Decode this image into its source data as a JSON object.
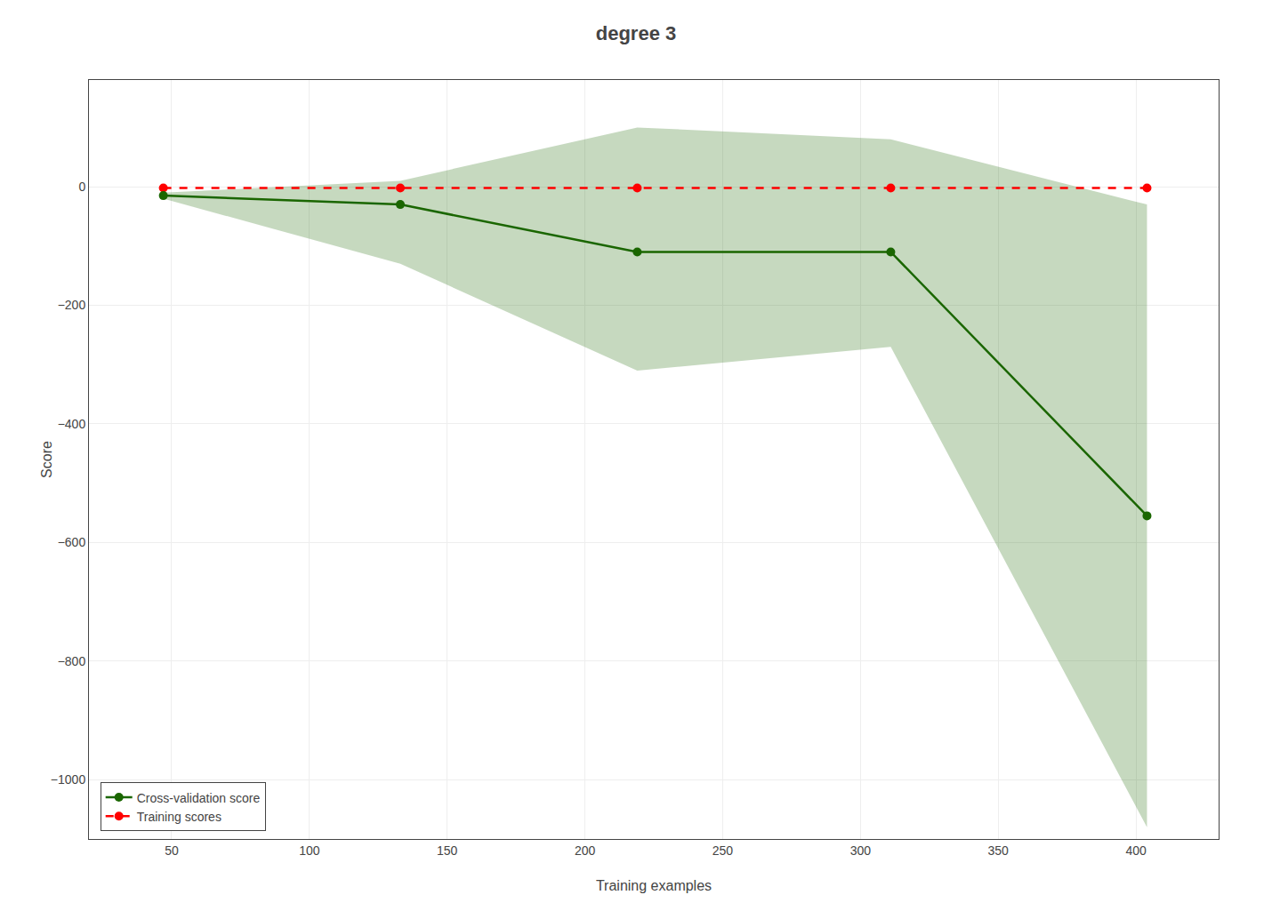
{
  "chart_data": {
    "type": "line",
    "title": "degree 3",
    "x_label": "Training examples",
    "y_label": "Score",
    "x": [
      47,
      133,
      219,
      311,
      404
    ],
    "series": [
      {
        "name": "Training scores",
        "color": "#FF0000",
        "line_style": "dashed",
        "marker": "circle",
        "values": [
          -2,
          -2,
          -2,
          -2,
          -2
        ]
      },
      {
        "name": "Cross-validation score",
        "color": "#1a6600",
        "line_style": "solid",
        "marker": "circle",
        "values": [
          -15,
          -30,
          -110,
          -110,
          -555
        ],
        "lower": [
          -20,
          -130,
          -310,
          -270,
          -1080
        ],
        "upper": [
          -10,
          10,
          100,
          80,
          -30
        ]
      }
    ],
    "xlim": [
      20,
      430
    ],
    "ylim": [
      -1100,
      180
    ],
    "xticks": [
      50,
      100,
      150,
      200,
      250,
      300,
      350,
      400
    ],
    "yticks": [
      0,
      -200,
      -400,
      -600,
      -800,
      -1000
    ],
    "grid": true,
    "legend": "lower left"
  }
}
